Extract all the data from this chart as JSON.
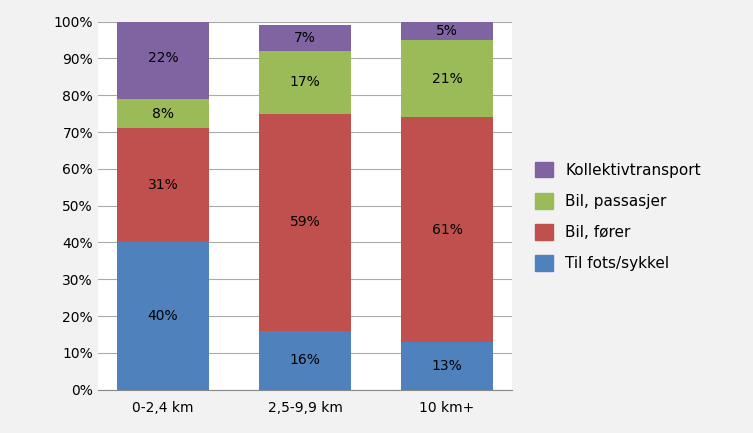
{
  "categories": [
    "0-2,4 km",
    "2,5-9,9 km",
    "10 km+"
  ],
  "series": [
    {
      "label": "Til fots/sykkel",
      "values": [
        40,
        16,
        13
      ],
      "color": "#4F81BD"
    },
    {
      "label": "Bil, fører",
      "values": [
        31,
        59,
        61
      ],
      "color": "#C0504D"
    },
    {
      "label": "Bil, passasjer",
      "values": [
        8,
        17,
        21
      ],
      "color": "#9BBB59"
    },
    {
      "label": "Kollektivtransport",
      "values": [
        22,
        7,
        5
      ],
      "color": "#8064A2"
    }
  ],
  "ylim": [
    0,
    100
  ],
  "yticks": [
    0,
    10,
    20,
    30,
    40,
    50,
    60,
    70,
    80,
    90,
    100
  ],
  "ytick_labels": [
    "0%",
    "10%",
    "20%",
    "30%",
    "40%",
    "50%",
    "60%",
    "70%",
    "80%",
    "90%",
    "100%"
  ],
  "bar_width": 0.65,
  "background_color": "#F2F2F2",
  "plot_area_color": "#FFFFFF",
  "grid_color": "#AAAAAA",
  "label_fontsize": 10,
  "tick_fontsize": 10,
  "legend_fontsize": 11
}
